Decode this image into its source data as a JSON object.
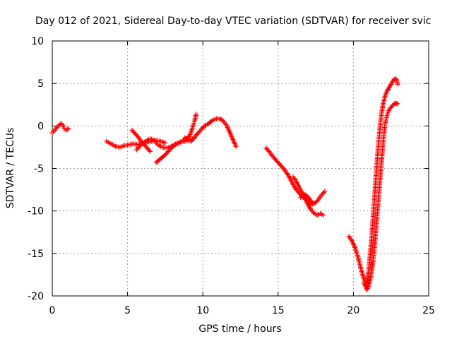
{
  "chart_data": {
    "type": "scatter",
    "title": "Day 012 of 2021, Sidereal Day-to-day VTEC variation (SDTVAR) for receiver svic",
    "xlabel": "GPS time / hours",
    "ylabel": "SDTVAR / TECUs",
    "xlim": [
      0,
      25
    ],
    "ylim": [
      -20,
      10
    ],
    "xticks": [
      0,
      5,
      10,
      15,
      20,
      25
    ],
    "yticks": [
      -20,
      -15,
      -10,
      -5,
      0,
      5,
      10
    ],
    "grid": true,
    "marker": "plus",
    "color": "#ff0000",
    "series": [
      {
        "segments": [
          [
            [
              0.0,
              -0.8
            ],
            [
              0.15,
              -0.5
            ],
            [
              0.3,
              -0.2
            ],
            [
              0.45,
              0.1
            ],
            [
              0.6,
              0.3
            ],
            [
              0.7,
              0.1
            ],
            [
              0.8,
              -0.3
            ],
            [
              0.9,
              -0.5
            ],
            [
              1.0,
              -0.4
            ],
            [
              1.1,
              -0.3
            ]
          ],
          [
            [
              3.6,
              -1.8
            ],
            [
              3.8,
              -2.0
            ],
            [
              4.0,
              -2.2
            ],
            [
              4.2,
              -2.4
            ],
            [
              4.5,
              -2.5
            ],
            [
              4.8,
              -2.3
            ],
            [
              5.1,
              -2.2
            ],
            [
              5.4,
              -2.1
            ],
            [
              5.7,
              -2.2
            ],
            [
              6.0,
              -2.1
            ],
            [
              6.3,
              -1.9
            ],
            [
              6.6,
              -1.8
            ],
            [
              6.9,
              -1.7
            ],
            [
              7.2,
              -1.8
            ],
            [
              7.5,
              -2.0
            ]
          ],
          [
            [
              5.3,
              -0.5
            ],
            [
              5.5,
              -0.9
            ],
            [
              5.7,
              -1.3
            ],
            [
              5.9,
              -1.8
            ],
            [
              6.1,
              -2.2
            ],
            [
              6.3,
              -2.6
            ],
            [
              6.5,
              -3.0
            ]
          ],
          [
            [
              5.6,
              -2.8
            ],
            [
              5.9,
              -2.2
            ],
            [
              6.2,
              -1.8
            ],
            [
              6.5,
              -1.5
            ],
            [
              6.8,
              -1.7
            ],
            [
              7.0,
              -2.2
            ],
            [
              7.3,
              -2.5
            ],
            [
              7.6,
              -2.6
            ],
            [
              7.9,
              -2.4
            ],
            [
              8.2,
              -2.1
            ],
            [
              8.5,
              -1.9
            ],
            [
              8.8,
              -1.8
            ],
            [
              9.1,
              -1.6
            ],
            [
              9.3,
              -1.5
            ]
          ],
          [
            [
              6.9,
              -4.3
            ],
            [
              7.1,
              -4.0
            ],
            [
              7.3,
              -3.7
            ],
            [
              7.5,
              -3.4
            ],
            [
              7.7,
              -3.0
            ],
            [
              7.9,
              -2.6
            ],
            [
              8.1,
              -2.3
            ],
            [
              8.3,
              -2.1
            ],
            [
              8.5,
              -1.9
            ],
            [
              8.7,
              -1.7
            ],
            [
              8.9,
              -1.5
            ],
            [
              9.1,
              -1.2
            ],
            [
              9.2,
              -0.8
            ],
            [
              9.3,
              -0.3
            ],
            [
              9.4,
              0.3
            ],
            [
              9.5,
              0.9
            ],
            [
              9.55,
              1.4
            ]
          ],
          [
            [
              8.8,
              -1.4
            ],
            [
              9.0,
              -1.7
            ],
            [
              9.2,
              -1.8
            ],
            [
              9.4,
              -1.5
            ],
            [
              9.6,
              -1.0
            ],
            [
              9.8,
              -0.6
            ],
            [
              10.0,
              -0.2
            ],
            [
              10.2,
              0.1
            ],
            [
              10.4,
              0.3
            ],
            [
              10.6,
              0.6
            ],
            [
              10.8,
              0.8
            ],
            [
              11.0,
              0.9
            ],
            [
              11.2,
              0.8
            ],
            [
              11.4,
              0.5
            ],
            [
              11.6,
              0.0
            ],
            [
              11.8,
              -0.8
            ],
            [
              12.0,
              -1.6
            ],
            [
              12.2,
              -2.4
            ]
          ],
          [
            [
              14.2,
              -2.6
            ],
            [
              14.4,
              -3.0
            ],
            [
              14.6,
              -3.5
            ],
            [
              14.8,
              -3.9
            ],
            [
              15.0,
              -4.3
            ],
            [
              15.2,
              -4.7
            ],
            [
              15.4,
              -5.1
            ],
            [
              15.6,
              -5.6
            ],
            [
              15.8,
              -6.2
            ],
            [
              16.0,
              -6.9
            ],
            [
              16.2,
              -7.5
            ],
            [
              16.4,
              -7.9
            ],
            [
              16.6,
              -8.3
            ],
            [
              16.8,
              -8.6
            ],
            [
              17.0,
              -8.9
            ],
            [
              17.2,
              -9.2
            ],
            [
              17.4,
              -9.1
            ]
          ],
          [
            [
              16.0,
              -6.0
            ],
            [
              16.2,
              -6.5
            ],
            [
              16.4,
              -7.2
            ],
            [
              16.6,
              -7.9
            ],
            [
              16.8,
              -8.6
            ],
            [
              17.0,
              -9.3
            ],
            [
              17.2,
              -9.9
            ],
            [
              17.4,
              -10.3
            ],
            [
              17.6,
              -10.5
            ],
            [
              17.8,
              -10.3
            ],
            [
              18.0,
              -10.5
            ]
          ],
          [
            [
              16.5,
              -8.4
            ],
            [
              16.7,
              -8.0
            ],
            [
              16.9,
              -8.2
            ],
            [
              17.1,
              -8.6
            ],
            [
              17.3,
              -9.2
            ],
            [
              17.5,
              -9.0
            ],
            [
              17.7,
              -8.6
            ],
            [
              17.9,
              -8.1
            ],
            [
              18.1,
              -7.7
            ]
          ],
          [
            [
              19.7,
              -13.0
            ],
            [
              19.9,
              -13.5
            ],
            [
              20.1,
              -14.3
            ],
            [
              20.3,
              -15.4
            ],
            [
              20.5,
              -16.8
            ],
            [
              20.7,
              -18.0
            ],
            [
              20.85,
              -19.0
            ],
            [
              20.9,
              -19.3
            ],
            [
              21.0,
              -18.9
            ],
            [
              21.1,
              -18.2
            ],
            [
              21.2,
              -17.2
            ],
            [
              21.3,
              -16.0
            ],
            [
              21.4,
              -14.3
            ],
            [
              21.5,
              -12.2
            ],
            [
              21.6,
              -10.0
            ],
            [
              21.7,
              -7.8
            ],
            [
              21.8,
              -5.6
            ],
            [
              21.9,
              -3.5
            ],
            [
              22.0,
              -1.5
            ],
            [
              22.1,
              0.2
            ],
            [
              22.2,
              1.0
            ],
            [
              22.3,
              1.6
            ],
            [
              22.4,
              2.0
            ],
            [
              22.6,
              2.4
            ],
            [
              22.8,
              2.7
            ],
            [
              22.95,
              2.6
            ]
          ],
          [
            [
              20.7,
              -18.5
            ],
            [
              20.8,
              -18.8
            ],
            [
              20.9,
              -18.3
            ],
            [
              21.0,
              -17.2
            ],
            [
              21.1,
              -15.5
            ],
            [
              21.2,
              -13.5
            ],
            [
              21.3,
              -11.0
            ],
            [
              21.4,
              -8.5
            ],
            [
              21.5,
              -6.0
            ],
            [
              21.6,
              -3.5
            ],
            [
              21.7,
              -1.5
            ],
            [
              21.8,
              0.5
            ],
            [
              21.9,
              1.8
            ],
            [
              22.0,
              2.8
            ],
            [
              22.1,
              3.5
            ],
            [
              22.2,
              4.0
            ],
            [
              22.3,
              4.3
            ],
            [
              22.4,
              4.6
            ],
            [
              22.5,
              4.9
            ],
            [
              22.6,
              5.2
            ],
            [
              22.7,
              5.5
            ],
            [
              22.8,
              5.6
            ],
            [
              22.9,
              5.3
            ],
            [
              22.95,
              4.9
            ]
          ]
        ]
      }
    ]
  }
}
